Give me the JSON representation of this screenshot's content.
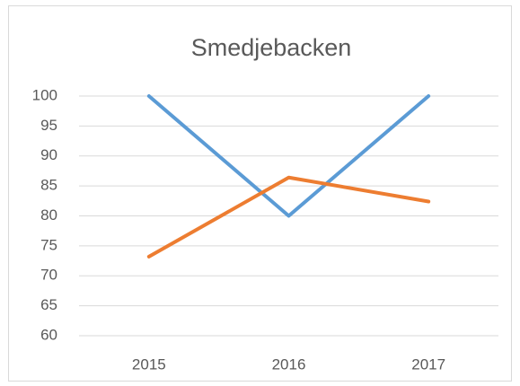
{
  "chart_data": {
    "type": "line",
    "title": "Smedjebacken",
    "categories": [
      "2015",
      "2016",
      "2017"
    ],
    "series": [
      {
        "color": "#5b9bd5",
        "values": [
          100,
          80,
          100
        ]
      },
      {
        "color": "#ed7d31",
        "values": [
          73.2,
          86.4,
          82.4
        ]
      }
    ],
    "ylim": [
      60,
      100
    ],
    "yticks": [
      60,
      65,
      70,
      75,
      80,
      85,
      90,
      95,
      100
    ],
    "grid": true
  }
}
